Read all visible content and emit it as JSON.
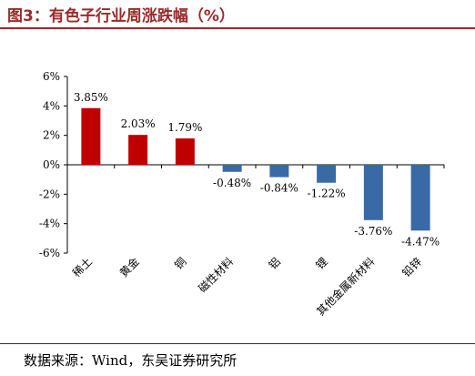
{
  "header": {
    "title": "图3：有色子行业周涨跌幅（%）"
  },
  "footer": {
    "source": "数据来源：Wind，东吴证券研究所"
  },
  "chart_data": {
    "type": "bar",
    "title": "图3：有色子行业周涨跌幅（%）",
    "xlabel": "",
    "ylabel": "",
    "categories": [
      "稀土",
      "黄金",
      "铜",
      "磁性材料",
      "铝",
      "锂",
      "其他金属新材料",
      "铅锌"
    ],
    "values": [
      3.85,
      2.03,
      1.79,
      -0.48,
      -0.84,
      -1.22,
      -3.76,
      -4.47
    ],
    "value_labels": [
      "3.85%",
      "2.03%",
      "1.79%",
      "-0.48%",
      "-0.84%",
      "-1.22%",
      "-3.76%",
      "-4.47%"
    ],
    "ylim": [
      -6,
      6
    ],
    "yticks": [
      6,
      4,
      2,
      0,
      -2,
      -4,
      -6
    ],
    "ytick_labels": [
      "6%",
      "4%",
      "2%",
      "0%",
      "-2%",
      "-4%",
      "-6%"
    ],
    "colors": {
      "positive": "#c00000",
      "negative": "#3a6aa6"
    },
    "grid": false,
    "legend": "none"
  }
}
